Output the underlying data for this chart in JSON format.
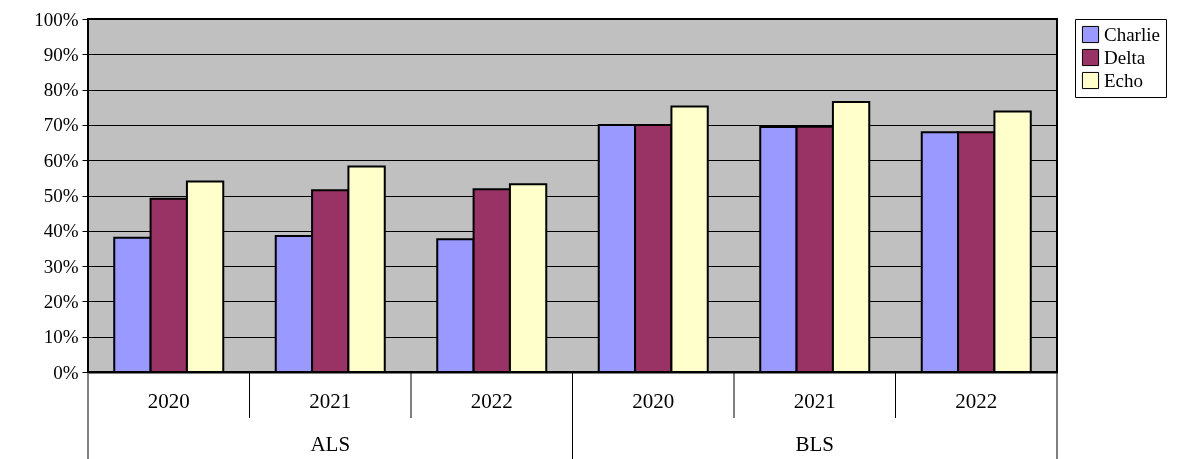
{
  "chart_data": {
    "type": "bar",
    "categories": [
      "2020",
      "2021",
      "2022",
      "2020",
      "2021",
      "2022"
    ],
    "annotations": [
      "ALS",
      "BLS"
    ],
    "series": [
      {
        "name": "Charlie",
        "color": "#9999ff",
        "values": [
          38,
          38.5,
          37.6,
          70,
          69.4,
          67.9
        ]
      },
      {
        "name": "Delta",
        "color": "#993366",
        "values": [
          49.1,
          51.5,
          51.8,
          70,
          69.5,
          67.9
        ]
      },
      {
        "name": "Echo",
        "color": "#ffffcc",
        "values": [
          54,
          58.2,
          53.2,
          75.2,
          76.5,
          73.8
        ]
      }
    ],
    "ylim": [
      0,
      100
    ],
    "yticks": [
      {
        "value": 0,
        "label": "0%"
      },
      {
        "value": 10,
        "label": "10%"
      },
      {
        "value": 20,
        "label": "20%"
      },
      {
        "value": 30,
        "label": "30%"
      },
      {
        "value": 40,
        "label": "40%"
      },
      {
        "value": 50,
        "label": "50%"
      },
      {
        "value": 60,
        "label": "60%"
      },
      {
        "value": 70,
        "label": "70%"
      },
      {
        "value": 80,
        "label": "80%"
      },
      {
        "value": 90,
        "label": "90%"
      },
      {
        "value": 100,
        "label": "100%"
      }
    ],
    "grid": "y",
    "legend": "right"
  }
}
